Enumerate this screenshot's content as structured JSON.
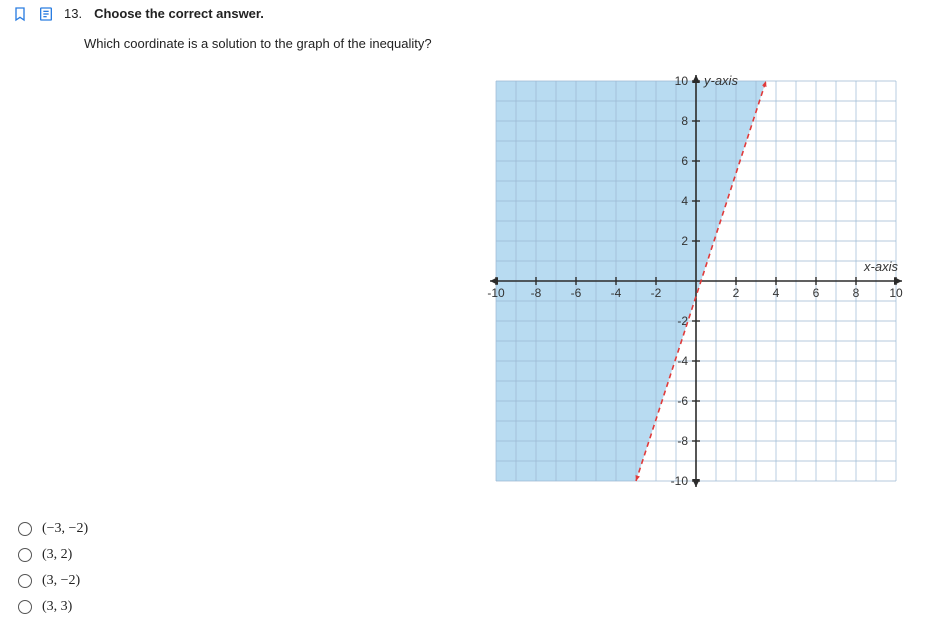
{
  "question": {
    "number": "13.",
    "title": "Choose the correct answer.",
    "subtext": "Which coordinate is a solution to the graph of the inequality?"
  },
  "options": [
    {
      "label": "(−3, −2)"
    },
    {
      "label": "(3, 2)"
    },
    {
      "label": "(3, −2)"
    },
    {
      "label": "(3, 3)"
    }
  ],
  "graph": {
    "type": "inequality-plot",
    "xlim": [
      -10,
      10
    ],
    "ylim": [
      -10,
      10
    ],
    "tick_step": 2,
    "x_tick_labels": [
      "-10",
      "-8",
      "-6",
      "-4",
      "-2",
      "2",
      "4",
      "6",
      "8",
      "10"
    ],
    "y_tick_labels": [
      "10",
      "8",
      "6",
      "4",
      "2",
      "-2",
      "-4",
      "-6",
      "-8",
      "-10"
    ],
    "x_axis_label": "x-axis",
    "y_axis_label": "y-axis",
    "background_color": "#ffffff",
    "grid_color": "#9bb8d3",
    "axis_color": "#2b2b2b",
    "shade_color": "#b0d7ef",
    "shade_opacity": 0.9,
    "boundary_line": {
      "style": "dashed",
      "color": "#e03a3a",
      "width": 1.6,
      "p1": [
        -3,
        -10
      ],
      "p2": [
        3.5,
        10
      ],
      "shaded_side": "left"
    },
    "label_fontsize": 13,
    "tick_fontsize": 12,
    "font_family": "Arial"
  },
  "icons": {
    "bookmark_color": "#2a7de1",
    "note_color": "#2a7de1"
  }
}
